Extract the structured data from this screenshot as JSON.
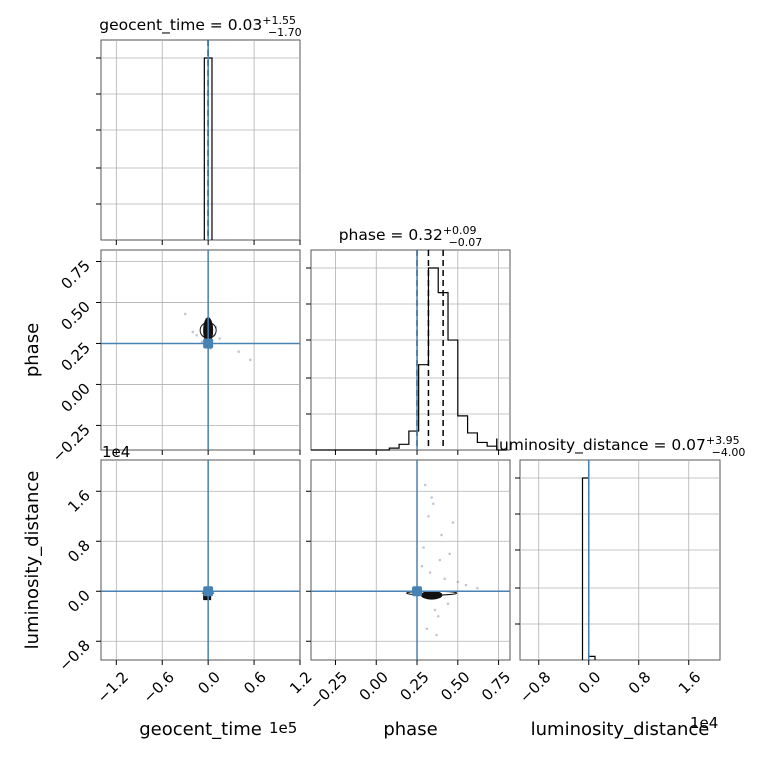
{
  "chart_data": {
    "type": "corner",
    "parameters": [
      "geocent_time",
      "phase",
      "luminosity_distance"
    ],
    "truths": {
      "geocent_time": 0.0,
      "phase": 0.25,
      "luminosity_distance": 0.0
    },
    "truth_color": "#4682b4",
    "summaries": [
      {
        "param": "geocent_time",
        "label": "geocent_time = 0.03",
        "upper": "+1.55",
        "lower": "−1.70",
        "quantiles": [
          -1.67,
          0.03,
          1.58
        ]
      },
      {
        "param": "phase",
        "label": "phase = 0.32",
        "upper": "+0.09",
        "lower": "−0.07",
        "quantiles": [
          0.25,
          0.32,
          0.41
        ]
      },
      {
        "param": "luminosity_distance",
        "label": "luminosity_distance = 0.07",
        "upper": "+3.95",
        "lower": "−4.00",
        "quantiles": [
          -3.93,
          0.07,
          4.02
        ]
      }
    ],
    "axes": {
      "geocent_time": {
        "range": [
          -140000,
          120000
        ],
        "ticks": [
          -120000,
          -60000,
          0,
          60000,
          120000
        ],
        "tick_labels": [
          "−1.2",
          "−0.6",
          "0.0",
          "0.6",
          "1.2"
        ],
        "offset": "1e5"
      },
      "phase": {
        "range": [
          -0.4,
          0.82
        ],
        "ticks": [
          -0.25,
          0,
          0.25,
          0.5,
          0.75
        ],
        "tick_labels": [
          "−0.25",
          "0.00",
          "0.25",
          "0.50",
          "0.75"
        ]
      },
      "luminosity_distance": {
        "range": [
          -11000,
          21000
        ],
        "ticks": [
          -8000,
          0,
          8000,
          16000
        ],
        "tick_labels": [
          "−0.8",
          "0.0",
          "0.8",
          "1.6"
        ],
        "offset": "1e4"
      }
    },
    "histograms": {
      "geocent_time": {
        "edges": [
          -5000,
          0,
          5000
        ],
        "values": [
          1.0,
          1.0
        ]
      },
      "phase": {
        "edges": [
          -0.4,
          -0.34,
          -0.28,
          -0.22,
          -0.16,
          -0.1,
          -0.04,
          0.02,
          0.08,
          0.14,
          0.2,
          0.26,
          0.32,
          0.38,
          0.44,
          0.5,
          0.56,
          0.62,
          0.68,
          0.74,
          0.8
        ],
        "values": [
          0,
          0,
          0,
          0,
          0,
          0,
          0,
          0,
          0.01,
          0.03,
          0.1,
          0.45,
          0.96,
          0.83,
          0.58,
          0.18,
          0.09,
          0.04,
          0.02,
          0
        ]
      },
      "luminosity_distance": {
        "edges": [
          -1000,
          0,
          1000
        ],
        "values": [
          1.0,
          0.02
        ]
      }
    },
    "scatter": {
      "phase_vs_geocent_time": {
        "x": [
          -30000,
          -15000,
          5000,
          10000,
          40000,
          55000,
          -20000,
          3000,
          -2000,
          8000,
          15000,
          -8000
        ],
        "y": [
          0.43,
          0.3,
          0.27,
          0.35,
          0.2,
          0.15,
          0.32,
          0.22,
          0.4,
          0.3,
          0.28,
          0.26
        ]
      },
      "luminosity_distance_vs_phase": {
        "x": [
          0.3,
          0.35,
          0.32,
          0.4,
          0.45,
          0.28,
          0.33,
          0.42,
          0.5,
          0.36,
          0.38,
          0.31,
          0.37,
          0.47,
          0.34,
          0.29,
          0.39,
          0.44,
          0.55,
          0.62
        ],
        "y": [
          17000,
          14000,
          12000,
          9000,
          6000,
          4000,
          3000,
          2000,
          1500,
          -3000,
          -4000,
          -6000,
          -7000,
          11000,
          15000,
          7000,
          5000,
          -2000,
          1000,
          500
        ]
      }
    },
    "dense_region": {
      "phase_vs_geocent_time": {
        "x_center": 0,
        "y_center": 0.33,
        "y_span": [
          0.26,
          0.42
        ]
      },
      "luminosity_distance_vs_phase": {
        "x_center": 0.34,
        "y_center": -300,
        "x_span": [
          0.25,
          0.47
        ]
      }
    }
  }
}
